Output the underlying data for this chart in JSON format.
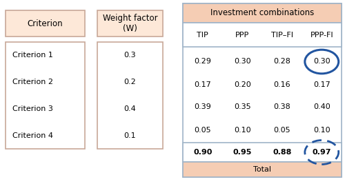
{
  "criteria": [
    "Criterion 1",
    "Criterion 2",
    "Criterion 3",
    "Criterion 4"
  ],
  "weights": [
    "0.3",
    "0.2",
    "0.4",
    "0.1"
  ],
  "inv_headers": [
    "TIP",
    "PPP",
    "TIP–FI",
    "PPP-FI"
  ],
  "inv_data": [
    [
      "0.29",
      "0.30",
      "0.28",
      "0.30"
    ],
    [
      "0.17",
      "0.20",
      "0.16",
      "0.17"
    ],
    [
      "0.39",
      "0.35",
      "0.38",
      "0.40"
    ],
    [
      "0.05",
      "0.10",
      "0.05",
      "0.10"
    ]
  ],
  "totals": [
    "0.90",
    "0.95",
    "0.88",
    "0.97"
  ],
  "header_bg": "#f5cdb4",
  "left_box_bg": "#fde8d8",
  "left_border": "#c8a898",
  "right_border": "#a0b4c8",
  "total_label": "Total",
  "inv_comb_label": "Investment combinations",
  "circle_solid_color": "#2255a0",
  "circle_dashed_color": "#2255a0",
  "font_size": 8.0,
  "font_size_header": 8.5
}
